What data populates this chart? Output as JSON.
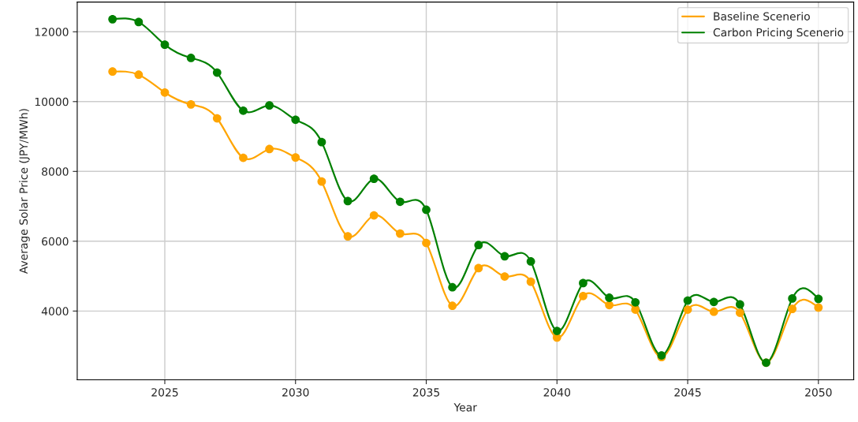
{
  "chart_data": {
    "type": "line",
    "xlabel": "Year",
    "ylabel": "Average Solar Price (JPY/MWh)",
    "x": [
      2023,
      2024,
      2025,
      2026,
      2027,
      2028,
      2029,
      2030,
      2031,
      2032,
      2033,
      2034,
      2035,
      2036,
      2037,
      2038,
      2039,
      2040,
      2041,
      2042,
      2043,
      2044,
      2045,
      2046,
      2047,
      2048,
      2049,
      2050
    ],
    "series": [
      {
        "name": "Baseline Scenerio",
        "color": "#ffa500",
        "values": [
          10860,
          10770,
          10260,
          9920,
          9520,
          8390,
          8640,
          8400,
          7710,
          6140,
          6740,
          6220,
          5950,
          4150,
          5230,
          4990,
          4840,
          3240,
          4430,
          4170,
          4040,
          2680,
          4040,
          3980,
          3950,
          2520,
          4060,
          4100
        ]
      },
      {
        "name": "Carbon Pricing Scenerio",
        "color": "#008000",
        "values": [
          12360,
          12280,
          11630,
          11250,
          10830,
          9740,
          9890,
          9480,
          8840,
          7150,
          7790,
          7130,
          6900,
          4680,
          5890,
          5570,
          5420,
          3430,
          4800,
          4380,
          4250,
          2730,
          4300,
          4260,
          4190,
          2520,
          4360,
          4350
        ]
      }
    ],
    "xlim": [
      2021.65,
      2051.35
    ],
    "xticks": [
      2025,
      2030,
      2035,
      2040,
      2045,
      2050
    ],
    "ylim": [
      2030,
      12850
    ],
    "yticks": [
      4000,
      6000,
      8000,
      10000,
      12000
    ],
    "grid": true,
    "legend": "top right",
    "marker": "circle",
    "line_style": "solid"
  }
}
